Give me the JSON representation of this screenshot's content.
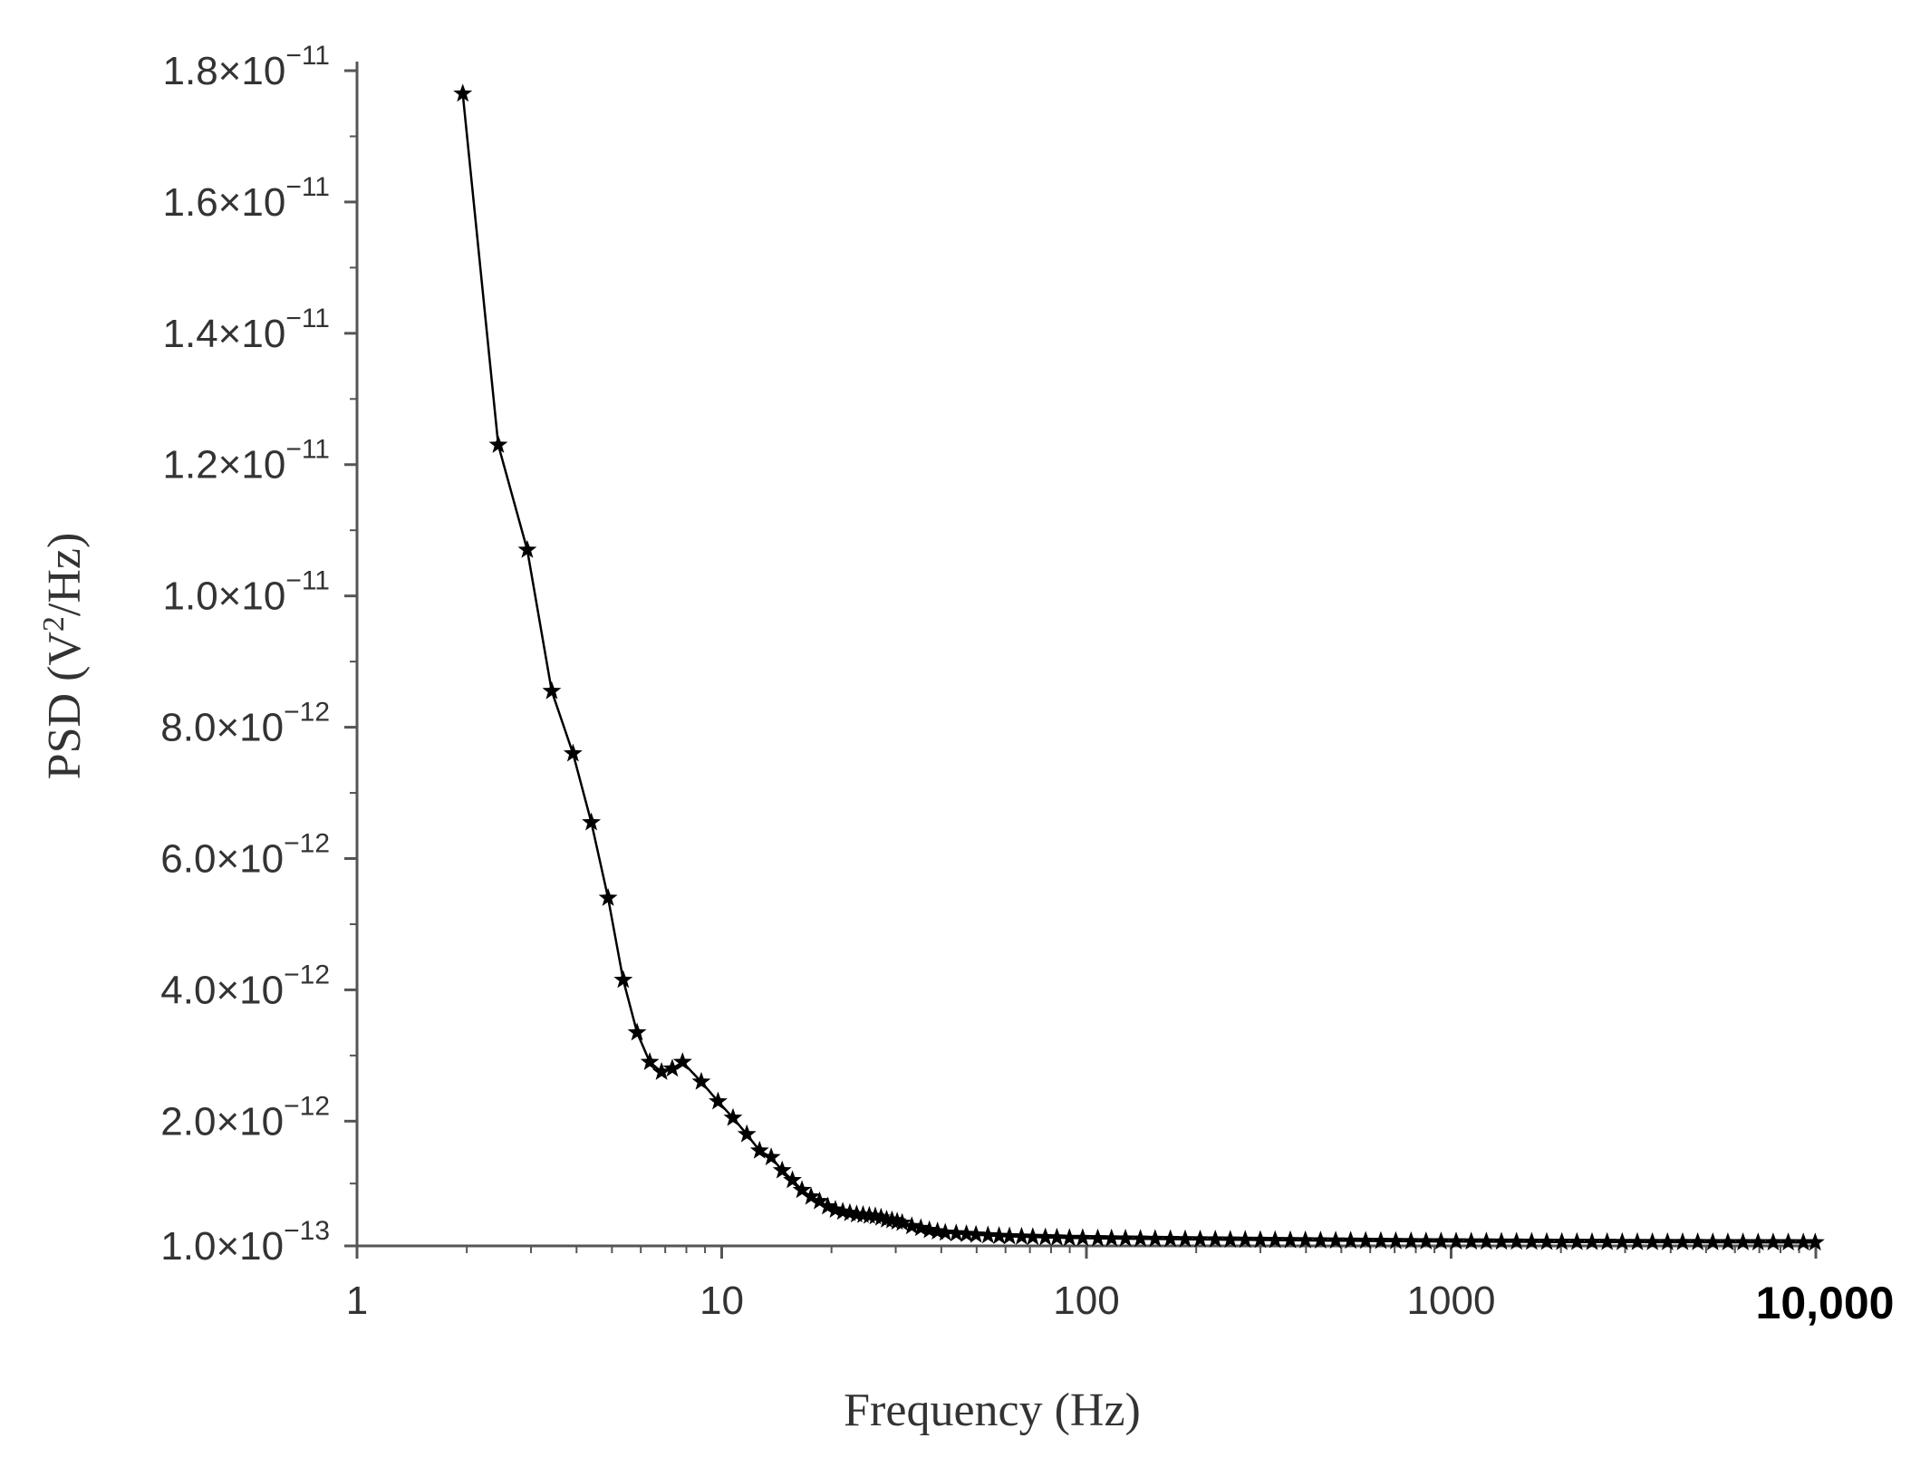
{
  "chart_data": {
    "type": "line",
    "title": "",
    "xlabel": "Frequency (Hz)",
    "ylabel_main": "PSD (V",
    "ylabel_sup": "2",
    "ylabel_tail": "/Hz)",
    "x_scale": "log",
    "xlim": [
      1,
      10000
    ],
    "ylim": [
      1e-13,
      1.8e-11
    ],
    "grid": false,
    "legend": "none",
    "marker": "star",
    "line_color": "#000000",
    "x_ticks": [
      {
        "value": 1,
        "label": "1",
        "bold": false
      },
      {
        "value": 10,
        "label": "10",
        "bold": false
      },
      {
        "value": 100,
        "label": "100",
        "bold": false
      },
      {
        "value": 1000,
        "label": "1000",
        "bold": false
      },
      {
        "value": 10000,
        "label": "10,000",
        "bold": true
      }
    ],
    "y_ticks": [
      {
        "value": 1e-13,
        "mant": "1.0",
        "exp": "−13"
      },
      {
        "value": 2e-12,
        "mant": "2.0",
        "exp": "−12"
      },
      {
        "value": 4e-12,
        "mant": "4.0",
        "exp": "−12"
      },
      {
        "value": 6e-12,
        "mant": "6.0",
        "exp": "−12"
      },
      {
        "value": 8e-12,
        "mant": "8.0",
        "exp": "−12"
      },
      {
        "value": 1e-11,
        "mant": "1.0",
        "exp": "−11"
      },
      {
        "value": 1.2e-11,
        "mant": "1.2",
        "exp": "−11"
      },
      {
        "value": 1.4e-11,
        "mant": "1.4",
        "exp": "−11"
      },
      {
        "value": 1.6e-11,
        "mant": "1.6",
        "exp": "−11"
      },
      {
        "value": 1.8e-11,
        "mant": "1.8",
        "exp": "−11"
      }
    ],
    "series": [
      {
        "x": [
          1.95,
          2.44,
          2.93,
          3.42,
          3.91,
          4.39,
          4.88,
          5.37,
          5.86,
          6.35,
          6.84,
          7.32,
          7.81,
          8.79,
          9.77,
          10.74,
          11.72,
          12.7,
          13.67,
          14.65,
          15.63,
          16.6,
          17.58,
          18.55,
          19.53,
          20.5,
          21.48,
          22.46,
          23.44,
          24.41,
          25.39,
          26.37,
          27.34,
          28.32,
          29.3,
          30.27,
          31.25,
          33.2,
          35.16,
          37.11,
          39.06,
          41.02,
          43.95,
          46.88,
          49.8,
          53.71,
          57.62,
          61.52,
          66.41,
          71.29,
          77.15,
          83.01,
          89.84,
          97.66,
          107.42,
          117.19,
          127.93,
          140.63,
          154.3,
          169.92,
          186.52,
          205.08,
          225.59,
          248.05,
          272.46,
          299.8,
          329.1,
          362.3,
          398.4,
          438.5,
          482.4,
          530.3,
          583.0,
          641.6,
          705.1,
          776.4,
          853.5,
          938.5,
          1032.2,
          1135.7,
          1249.0,
          1374.0,
          1511.2,
          1662.6,
          1828.6,
          2011.7,
          2212.9,
          2434.1,
          2677.7,
          2945.3,
          3239.7,
          3563.5,
          3919.9,
          4312.0,
          4743.2,
          5217.5,
          5739.3,
          6313.2,
          6944.5,
          7638.9,
          8402.8,
          9243.2,
          9960.0
        ],
        "y": [
          1.765e-11,
          1.23e-11,
          1.07e-11,
          8.55e-12,
          7.6e-12,
          6.55e-12,
          5.4e-12,
          4.15e-12,
          3.35e-12,
          2.9e-12,
          2.75e-12,
          2.8e-12,
          2.9e-12,
          2.6e-12,
          2.3e-12,
          2.05e-12,
          1.8e-12,
          1.55e-12,
          1.45e-12,
          1.25e-12,
          1.1e-12,
          9.5e-13,
          8.5e-13,
          7.8e-13,
          7e-13,
          6.5e-13,
          6.2e-13,
          6e-13,
          5.8e-13,
          5.7e-13,
          5.6e-13,
          5.5e-13,
          5.3e-13,
          5e-13,
          4.9e-13,
          4.7e-13,
          4.5e-13,
          4e-13,
          3.7e-13,
          3.4e-13,
          3.2e-13,
          3e-13,
          2.9e-13,
          2.8e-13,
          2.7e-13,
          2.6e-13,
          2.5e-13,
          2.45e-13,
          2.4e-13,
          2.35e-13,
          2.3e-13,
          2.25e-13,
          2.2e-13,
          2.18e-13,
          2.15e-13,
          2.12e-13,
          2.1e-13,
          2.08e-13,
          2.05e-13,
          2.03e-13,
          2e-13,
          1.98e-13,
          1.96e-13,
          1.94e-13,
          1.92e-13,
          1.9e-13,
          1.88e-13,
          1.86e-13,
          1.84e-13,
          1.82e-13,
          1.8e-13,
          1.78e-13,
          1.76e-13,
          1.74e-13,
          1.72e-13,
          1.7e-13,
          1.69e-13,
          1.68e-13,
          1.67e-13,
          1.66e-13,
          1.65e-13,
          1.64e-13,
          1.63e-13,
          1.62e-13,
          1.61e-13,
          1.6e-13,
          1.6e-13,
          1.59e-13,
          1.59e-13,
          1.58e-13,
          1.58e-13,
          1.57e-13,
          1.57e-13,
          1.56e-13,
          1.56e-13,
          1.55e-13,
          1.55e-13,
          1.55e-13,
          1.54e-13,
          1.54e-13,
          1.54e-13,
          1.53e-13,
          1.53e-13
        ]
      }
    ]
  }
}
